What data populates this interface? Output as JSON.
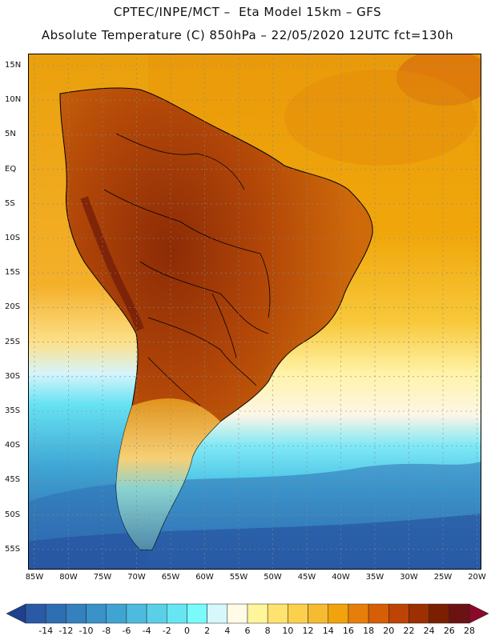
{
  "title_line1": "CPTEC/INPE/MCT –  Eta Model 15km – GFS",
  "title_line2": "Absolute Temperature (C) 850hPa – 22/05/2020 12UTC fct=130h",
  "lat_labels": [
    "15N",
    "10N",
    "5N",
    "EQ",
    "5S",
    "10S",
    "15S",
    "20S",
    "25S",
    "30S",
    "35S",
    "40S",
    "45S",
    "50S",
    "55S"
  ],
  "lon_labels": [
    "85W",
    "80W",
    "75W",
    "70W",
    "65W",
    "60W",
    "55W",
    "50W",
    "45W",
    "40W",
    "35W",
    "30W",
    "25W",
    "20W"
  ],
  "colorbar": {
    "labels": [
      "-14",
      "-12",
      "-10",
      "-8",
      "-6",
      "-4",
      "-2",
      "0",
      "2",
      "4",
      "6",
      "8",
      "10",
      "12",
      "14",
      "16",
      "18",
      "20",
      "22",
      "24",
      "26",
      "28"
    ],
    "colors": [
      "#1f3f8f",
      "#2a5aa5",
      "#2e6eb3",
      "#3381bf",
      "#3992c8",
      "#40a4d2",
      "#4ebbde",
      "#5ad0e8",
      "#66e6f3",
      "#79fbfb",
      "#d6f7fc",
      "#fffbe6",
      "#fff59a",
      "#ffe36e",
      "#fcd04d",
      "#f6bb31",
      "#f0a30a",
      "#e87e0a",
      "#d65e07",
      "#bd4404",
      "#9c3000",
      "#7a1f00",
      "#6d1212",
      "#8a0a2a"
    ]
  },
  "colors": {
    "ocean_warm": "#eaa30a",
    "ocean_cool": "#3d8fc5",
    "land_hot": "#b84a0a"
  }
}
